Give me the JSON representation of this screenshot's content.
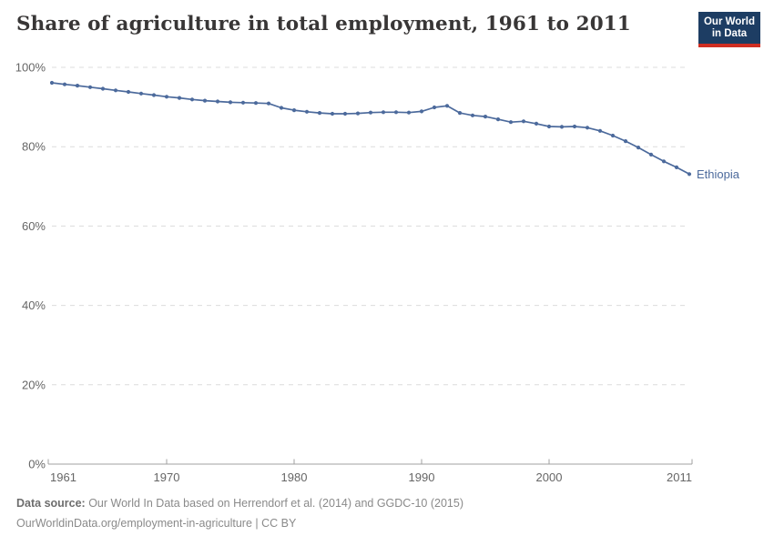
{
  "header": {
    "title": "Share of agriculture in total employment, 1961 to 2011",
    "logo": {
      "line1": "Our World",
      "line2": "in Data",
      "bg_color": "#1d3d63",
      "accent_color": "#cf2e22"
    }
  },
  "chart_data": {
    "type": "line",
    "title": "Share of agriculture in total employment, 1961 to 2011",
    "xlabel": "",
    "ylabel": "",
    "xlim": [
      1961,
      2011
    ],
    "ylim": [
      0,
      100
    ],
    "grid": "horizontal-dashed",
    "grid_color": "#dcdcdc",
    "axis_color": "#a1a1a1",
    "tick_label_color": "#666666",
    "legend_position": "line-end-label",
    "y_ticks": [
      {
        "value": 0,
        "label": "0%"
      },
      {
        "value": 20,
        "label": "20%"
      },
      {
        "value": 40,
        "label": "40%"
      },
      {
        "value": 60,
        "label": "60%"
      },
      {
        "value": 80,
        "label": "80%"
      },
      {
        "value": 100,
        "label": "100%"
      }
    ],
    "x_ticks": [
      {
        "value": 1961,
        "label": "1961"
      },
      {
        "value": 1970,
        "label": "1970"
      },
      {
        "value": 1980,
        "label": "1980"
      },
      {
        "value": 1990,
        "label": "1990"
      },
      {
        "value": 2000,
        "label": "2000"
      },
      {
        "value": 2011,
        "label": "2011"
      }
    ],
    "series": [
      {
        "name": "Ethiopia",
        "color": "#4c6a9c",
        "marker": "circle",
        "x": [
          1961,
          1962,
          1963,
          1964,
          1965,
          1966,
          1967,
          1968,
          1969,
          1970,
          1971,
          1972,
          1973,
          1974,
          1975,
          1976,
          1977,
          1978,
          1979,
          1980,
          1981,
          1982,
          1983,
          1984,
          1985,
          1986,
          1987,
          1988,
          1989,
          1990,
          1991,
          1992,
          1993,
          1994,
          1995,
          1996,
          1997,
          1998,
          1999,
          2000,
          2001,
          2002,
          2003,
          2004,
          2005,
          2006,
          2007,
          2008,
          2009,
          2010,
          2011
        ],
        "values": [
          96.1,
          95.7,
          95.4,
          95.0,
          94.6,
          94.2,
          93.8,
          93.4,
          93.0,
          92.6,
          92.3,
          91.9,
          91.6,
          91.4,
          91.2,
          91.1,
          91.0,
          90.9,
          89.8,
          89.2,
          88.8,
          88.5,
          88.3,
          88.3,
          88.4,
          88.6,
          88.7,
          88.7,
          88.6,
          88.9,
          89.9,
          90.3,
          88.5,
          87.9,
          87.6,
          86.9,
          86.2,
          86.4,
          85.8,
          85.1,
          85.0,
          85.1,
          84.8,
          84.0,
          82.8,
          81.4,
          79.8,
          78.0,
          76.3,
          74.8,
          73.1
        ]
      }
    ]
  },
  "footer": {
    "datasource_label": "Data source:",
    "datasource_text": " Our World In Data based on Herrendorf et al. (2014) and GGDC-10 (2015)",
    "link_text": "OurWorldinData.org/employment-in-agriculture | CC BY"
  }
}
